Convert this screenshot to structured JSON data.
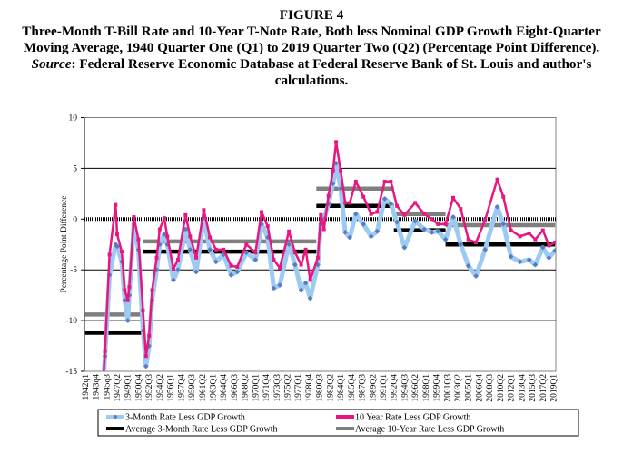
{
  "caption": {
    "figure_label": "FIGURE 4",
    "text_before_source": "Three-Month T-Bill Rate and 10-Year T-Note Rate, Both less Nominal GDP Growth Eight-Quarter Moving Average, 1940 Quarter One (Q1) to 2019 Quarter Two (Q2) (Percentage Point Difference). ",
    "source_label": "Source",
    "text_after_source": ": Federal Reserve Economic Database at Federal Reserve Bank of St. Louis and author's calculations."
  },
  "chart_data": {
    "type": "line",
    "title": "",
    "xlabel": "",
    "ylabel": "Percentage Point Difference",
    "ylim": [
      -15,
      10
    ],
    "yticks": [
      10,
      5,
      0,
      -5,
      -10,
      -15
    ],
    "xlim": [
      "1942Q1",
      "2019Q2"
    ],
    "xtick_labels": [
      "1942q1",
      "1943q4",
      "1945q3",
      "1947Q2",
      "1949Q1",
      "1950Q4",
      "1952Q3",
      "1954Q2",
      "1956Q1",
      "1957Q4",
      "1959Q3",
      "1961Q2",
      "1963Q1",
      "1964Q4",
      "1966Q3",
      "1968Q2",
      "1970Q1",
      "1971Q4",
      "1973Q3",
      "1975Q2",
      "1977Q1",
      "1978Q4",
      "1980Q3",
      "1982Q2",
      "1984Q1",
      "1985Q4",
      "1987Q3",
      "1989Q2",
      "1991Q1",
      "1992Q4",
      "1994Q3",
      "1996Q2",
      "1998Q1",
      "1999Q4",
      "2001Q3",
      "2003Q2",
      "2005Q1",
      "2006Q4",
      "2008Q3",
      "2010Q2",
      "2012Q1",
      "2013Q4",
      "2015Q3",
      "2017Q2",
      "2019Q1"
    ],
    "grid": "horizontal",
    "legend_position": "bottom",
    "x": [
      "1945Q1",
      "1945Q2",
      "1946Q1",
      "1947Q1",
      "1947Q2",
      "1948Q1",
      "1948Q3",
      "1949Q1",
      "1949Q2",
      "1950Q1",
      "1950Q4",
      "1951Q3",
      "1952Q1",
      "1952Q3",
      "1953Q1",
      "1953Q4",
      "1954Q2",
      "1955Q1",
      "1955Q3",
      "1956Q3",
      "1957Q2",
      "1958Q3",
      "1959Q2",
      "1960Q2",
      "1961Q3",
      "1962Q3",
      "1963Q3",
      "1964Q4",
      "1966Q1",
      "1967Q1",
      "1968Q3",
      "1970Q1",
      "1971Q1",
      "1972Q1",
      "1973Q1",
      "1974Q1",
      "1975Q3",
      "1976Q3",
      "1977Q3",
      "1978Q2",
      "1979Q1",
      "1980Q2",
      "1980Q4",
      "1981Q2",
      "1982Q1",
      "1982Q4",
      "1983Q2",
      "1984Q1",
      "1984Q4",
      "1985Q3",
      "1986Q3",
      "1987Q4",
      "1989Q1",
      "1990Q1",
      "1991Q2",
      "1992Q2",
      "1993Q2",
      "1994Q3",
      "1996Q2",
      "1997Q4",
      "1999Q1",
      "2000Q1",
      "2001Q2",
      "2002Q3",
      "2003Q4",
      "2005Q1",
      "2006Q2",
      "2007Q4",
      "2009Q4",
      "2010Q4",
      "2012Q1",
      "2013Q3",
      "2015Q1",
      "2016Q1",
      "2017Q2",
      "2018Q2",
      "2019Q2"
    ],
    "series": [
      {
        "name": "3-Month Rate Less GDP Growth",
        "color": "#9ccaf2",
        "marker_color": "#5a7bbf",
        "marker": "diamond",
        "values": [
          -16,
          -13.5,
          -5.5,
          -2.5,
          -2.7,
          -4.2,
          -8,
          -10,
          -7.5,
          -0.5,
          -3,
          -11,
          -14.5,
          -12.5,
          -8,
          -5,
          -2.5,
          -1.5,
          -2.5,
          -6,
          -5,
          -1,
          -3,
          -5.2,
          0.1,
          -3,
          -4.2,
          -3.5,
          -5.5,
          -5.2,
          -3.3,
          -4,
          -0.5,
          -1.8,
          -6.8,
          -6.5,
          -2.5,
          -4.5,
          -7,
          -6.3,
          -7.8,
          -4.5,
          -0.5,
          0,
          1.5,
          3.5,
          5.5,
          3,
          -1.3,
          -1.8,
          0.5,
          -0.5,
          -1.7,
          -1.2,
          2,
          1.5,
          -0.3,
          -2.8,
          -0.2,
          -1,
          -1.3,
          -1.2,
          -2,
          0.2,
          -2.5,
          -4.6,
          -5.6,
          -3,
          1.2,
          -0.5,
          -3.7,
          -4.2,
          -4,
          -4.5,
          -2.8,
          -3.8,
          -3.1
        ]
      },
      {
        "name": "10 Year Rate Less GDP Growth",
        "color": "#e8177f",
        "marker_color": "#e8177f",
        "marker": "square",
        "values": [
          -15.5,
          -13,
          -3.5,
          1.4,
          -1.5,
          -3.2,
          -7,
          -8,
          -6.7,
          0.2,
          -2,
          -9,
          -13.5,
          -11.5,
          -7,
          -3.8,
          -1,
          0.1,
          -1.7,
          -4.9,
          -4,
          0.4,
          -1.7,
          -3.8,
          0.9,
          -1.8,
          -3,
          -3,
          -4.6,
          -4.7,
          -2.5,
          -3.3,
          0.7,
          -0.7,
          -4,
          -4.8,
          -1.2,
          -3.3,
          -4.5,
          -3,
          -6,
          -3.8,
          0.4,
          -1,
          2.3,
          4.8,
          7.6,
          4.8,
          1.6,
          1.6,
          3.7,
          2.2,
          0.5,
          0.7,
          3.7,
          3.7,
          1.3,
          0.4,
          1.6,
          0.5,
          0,
          -0.5,
          -0.5,
          2.1,
          1.0,
          -2,
          -2.3,
          -0.1,
          3.9,
          2.2,
          -1.1,
          -1.7,
          -1.4,
          -2,
          -1.1,
          -2.6,
          -2.3
        ]
      }
    ],
    "averages": [
      {
        "name": "Average 3-Month Rate Less GDP Growth",
        "color": "#000000",
        "segments": [
          {
            "start": "1942Q1",
            "end": "1951Q3",
            "value": -11.2
          },
          {
            "start": "1951Q3",
            "end": "1980Q1",
            "value": -3.2
          },
          {
            "start": "1980Q1",
            "end": "1992Q4",
            "value": 1.3
          },
          {
            "start": "1992Q4",
            "end": "2001Q2",
            "value": -1.1
          },
          {
            "start": "2001Q2",
            "end": "2019Q2",
            "value": -2.5
          }
        ]
      },
      {
        "name": "Average 10-Year Rate Less GDP Growth",
        "color": "#7f7f7f",
        "segments": [
          {
            "start": "1942Q1",
            "end": "1951Q3",
            "value": -9.4
          },
          {
            "start": "1951Q3",
            "end": "1980Q1",
            "value": -2.2
          },
          {
            "start": "1980Q1",
            "end": "1992Q4",
            "value": 3.0
          },
          {
            "start": "1992Q4",
            "end": "2001Q2",
            "value": 0.5
          },
          {
            "start": "2001Q2",
            "end": "2019Q2",
            "value": -0.6
          }
        ]
      }
    ]
  }
}
